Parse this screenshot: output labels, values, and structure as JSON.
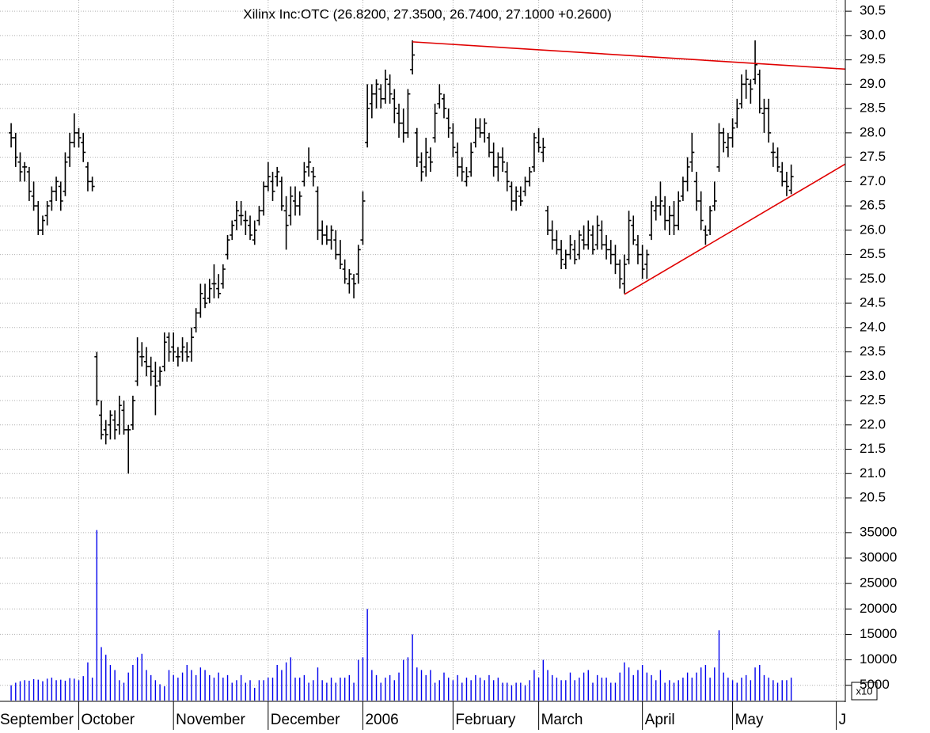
{
  "chart_data": [
    {
      "type": "ohlc",
      "title": "Xilinx Inc:OTC (26.8200, 27.3500, 26.7400, 27.1000 +0.2600)",
      "categories": [
        "September",
        null,
        null,
        null,
        null,
        null,
        null,
        null,
        null,
        null,
        null,
        null,
        null,
        null,
        null,
        null,
        null,
        null,
        "October",
        null,
        null,
        null,
        null,
        null,
        null,
        null,
        null,
        null,
        null,
        null,
        null,
        null,
        null,
        null,
        null,
        null,
        null,
        null,
        null,
        "November",
        null,
        null,
        null,
        null,
        null,
        null,
        null,
        null,
        null,
        null,
        null,
        null,
        null,
        null,
        null,
        null,
        null,
        null,
        null,
        null,
        "December",
        null,
        null,
        null,
        null,
        null,
        null,
        null,
        null,
        null,
        null,
        null,
        null,
        null,
        null,
        null,
        null,
        null,
        null,
        null,
        null,
        "2006",
        null,
        null,
        null,
        null,
        null,
        null,
        null,
        null,
        null,
        null,
        null,
        null,
        null,
        null,
        null,
        null,
        null,
        null,
        null,
        "February",
        null,
        null,
        null,
        null,
        null,
        null,
        null,
        null,
        null,
        null,
        null,
        null,
        null,
        null,
        null,
        null,
        null,
        null,
        "March",
        null,
        null,
        null,
        null,
        null,
        null,
        null,
        null,
        null,
        null,
        null,
        null,
        null,
        null,
        null,
        null,
        null,
        null,
        null,
        null,
        null,
        null,
        "April",
        null,
        null,
        null,
        null,
        null,
        null,
        null,
        null,
        null,
        null,
        null,
        null,
        null,
        null,
        null,
        null,
        null,
        null,
        null,
        "May",
        null,
        null,
        null,
        null,
        null,
        null,
        null,
        null,
        null,
        null,
        null,
        null,
        null,
        null,
        null,
        null,
        null,
        null,
        null,
        null,
        null,
        null,
        "June",
        null,
        null
      ],
      "open": [
        null,
        null,
        null,
        28.0,
        27.9,
        27.4,
        27.3,
        27.2,
        26.7,
        26.5,
        26.0,
        26.3,
        26.6,
        26.8,
        26.9,
        26.8,
        27.5,
        27.8,
        28.0,
        27.8,
        27.3,
        27.0,
        23.4,
        22.2,
        21.9,
        22.0,
        22.1,
        22.0,
        22.3,
        21.9,
        22.0,
        22.9,
        23.4,
        23.3,
        23.2,
        23.0,
        22.9,
        23.2,
        23.8,
        23.6,
        23.4,
        23.5,
        23.5,
        23.5,
        24.0,
        24.3,
        24.6,
        24.6,
        24.9,
        24.8,
        24.9,
        25.5,
        25.9,
        26.2,
        26.3,
        26.2,
        26.1,
        25.8,
        26.2,
        26.4,
        26.9,
        27.0,
        27.1,
        27.0,
        26.4,
        26.3,
        26.6,
        26.5,
        27.0,
        27.3,
        27.2,
        26.8,
        26.0,
        25.9,
        25.8,
        25.8,
        25.5,
        25.2,
        24.9,
        25.0,
        25.1,
        25.8,
        27.8,
        28.6,
        28.8,
        28.9,
        28.7,
        29.0,
        28.7,
        28.4,
        28.2,
        28.0,
        29.3,
        28.0,
        27.4,
        27.3,
        27.5,
        27.9,
        28.6,
        28.7,
        28.3,
        28.0,
        27.6,
        27.3,
        27.0,
        27.2,
        27.8,
        28.1,
        28.0,
        27.9,
        27.6,
        27.3,
        27.5,
        27.2,
        26.9,
        26.6,
        26.7,
        26.8,
        27.0,
        27.3,
        27.8,
        27.6,
        26.4,
        26.0,
        25.8,
        25.6,
        25.3,
        25.5,
        25.6,
        25.5,
        25.8,
        25.7,
        25.9,
        25.7,
        26.0,
        25.7,
        25.6,
        25.5,
        25.3,
        24.9,
        25.4,
        26.1,
        25.7,
        25.5,
        25.3,
        25.9,
        26.4,
        26.5,
        26.5,
        26.2,
        26.3,
        26.1,
        26.7,
        27.0,
        27.4,
        27.0,
        26.6,
        26.0,
        26.0,
        26.5,
        27.3,
        28.0,
        27.7,
        27.9,
        28.2,
        28.6,
        29.0,
        29.0,
        29.1,
        29.2,
        28.4,
        28.5,
        27.6,
        27.5,
        27.2,
        27.0,
        26.82,
        null,
        null,
        null,
        null,
        null,
        null,
        null,
        null,
        null,
        null,
        null,
        null
      ],
      "high": [
        null,
        null,
        null,
        28.2,
        28.0,
        27.6,
        27.4,
        27.3,
        27.0,
        26.6,
        26.3,
        26.6,
        26.9,
        27.1,
        27.0,
        27.6,
        28.0,
        28.4,
        28.1,
        28.0,
        27.4,
        27.1,
        23.5,
        22.5,
        22.1,
        22.3,
        22.3,
        22.6,
        22.5,
        22.0,
        22.6,
        23.8,
        23.7,
        23.6,
        23.4,
        23.3,
        23.2,
        23.9,
        23.9,
        23.9,
        23.6,
        23.8,
        23.7,
        24.0,
        24.4,
        24.9,
        24.9,
        25.0,
        25.3,
        25.1,
        25.3,
        25.9,
        26.2,
        26.6,
        26.6,
        26.4,
        26.3,
        26.2,
        26.5,
        27.0,
        27.4,
        27.2,
        27.3,
        27.1,
        26.7,
        26.9,
        26.9,
        26.8,
        27.4,
        27.7,
        27.3,
        26.9,
        26.2,
        26.1,
        26.1,
        26.0,
        25.8,
        25.4,
        25.2,
        25.1,
        25.7,
        26.8,
        29.0,
        29.0,
        29.1,
        29.0,
        29.3,
        29.2,
        28.9,
        28.6,
        28.5,
        28.9,
        29.9,
        28.1,
        27.6,
        27.9,
        27.7,
        28.6,
        29.0,
        28.8,
        28.5,
        28.2,
        27.8,
        27.5,
        27.3,
        27.8,
        28.3,
        28.3,
        28.3,
        28.0,
        27.8,
        27.6,
        27.7,
        27.4,
        27.0,
        26.9,
        26.9,
        27.1,
        27.3,
        28.0,
        28.1,
        27.9,
        26.5,
        26.2,
        26.0,
        25.8,
        25.6,
        25.9,
        25.8,
        26.0,
        26.1,
        26.2,
        26.1,
        26.3,
        26.2,
        25.9,
        25.8,
        25.7,
        25.4,
        25.5,
        26.4,
        26.3,
        25.9,
        25.7,
        25.6,
        26.6,
        26.7,
        27.0,
        26.7,
        26.5,
        26.6,
        26.8,
        27.1,
        27.5,
        28.0,
        27.2,
        26.8,
        26.1,
        26.5,
        27.0,
        28.2,
        28.1,
        28.0,
        28.3,
        28.7,
        29.2,
        29.3,
        29.1,
        29.9,
        29.3,
        28.7,
        28.7,
        27.8,
        27.7,
        27.4,
        27.2,
        27.35,
        null,
        null,
        null,
        null,
        null,
        null,
        null,
        null,
        null,
        null,
        null,
        null
      ],
      "low": [
        null,
        null,
        null,
        27.7,
        27.3,
        27.0,
        27.0,
        26.6,
        26.4,
        25.9,
        25.9,
        26.1,
        26.4,
        26.6,
        26.4,
        26.7,
        27.3,
        27.7,
        27.7,
        27.4,
        26.8,
        26.8,
        22.4,
        21.7,
        21.6,
        21.7,
        21.7,
        21.8,
        21.8,
        21.0,
        21.9,
        22.8,
        23.2,
        23.0,
        22.8,
        22.2,
        22.8,
        23.1,
        23.3,
        23.3,
        23.2,
        23.3,
        23.3,
        23.3,
        23.9,
        24.2,
        24.4,
        24.5,
        24.6,
        24.6,
        24.8,
        25.4,
        25.8,
        26.0,
        26.1,
        25.9,
        25.8,
        25.7,
        26.1,
        26.3,
        26.8,
        26.6,
        26.9,
        26.4,
        25.6,
        26.1,
        26.3,
        26.3,
        26.9,
        27.1,
        26.9,
        25.8,
        25.7,
        25.7,
        25.6,
        25.4,
        25.2,
        24.9,
        24.7,
        24.6,
        24.9,
        25.7,
        27.7,
        28.3,
        28.5,
        28.5,
        28.6,
        28.6,
        28.2,
        27.9,
        27.8,
        27.9,
        29.2,
        27.3,
        27.0,
        27.1,
        27.2,
        27.8,
        28.5,
        28.3,
        27.9,
        27.5,
        27.1,
        27.0,
        26.9,
        27.1,
        27.7,
        27.9,
        27.8,
        27.5,
        27.1,
        27.0,
        27.2,
        26.8,
        26.4,
        26.4,
        26.5,
        26.7,
        26.9,
        27.2,
        27.6,
        27.4,
        25.9,
        25.6,
        25.5,
        25.2,
        25.2,
        25.4,
        25.3,
        25.4,
        25.6,
        25.6,
        25.5,
        25.6,
        25.6,
        25.4,
        25.3,
        25.1,
        24.8,
        24.7,
        25.3,
        25.7,
        25.3,
        25.0,
        25.0,
        25.8,
        26.2,
        26.3,
        26.0,
        25.9,
        25.9,
        26.0,
        26.6,
        26.8,
        27.2,
        26.4,
        26.0,
        25.7,
        25.9,
        26.4,
        27.2,
        27.6,
        27.5,
        27.7,
        28.1,
        28.5,
        28.7,
        28.6,
        29.0,
        28.4,
        28.0,
        27.8,
        27.3,
        27.2,
        26.9,
        26.7,
        26.74,
        null,
        null,
        null,
        null,
        null,
        null,
        null,
        null,
        null,
        null,
        null,
        null
      ],
      "close": [
        null,
        null,
        null,
        27.9,
        27.5,
        27.2,
        27.3,
        26.8,
        26.5,
        26.0,
        26.2,
        26.5,
        26.8,
        27.0,
        26.6,
        27.4,
        27.8,
        28.0,
        27.9,
        27.6,
        27.0,
        26.9,
        22.5,
        21.8,
        21.8,
        22.2,
        21.9,
        22.4,
        21.9,
        21.9,
        22.5,
        23.5,
        23.4,
        23.2,
        23.1,
        22.8,
        23.1,
        23.7,
        23.5,
        23.5,
        23.4,
        23.6,
        23.4,
        23.8,
        24.3,
        24.7,
        24.5,
        24.8,
        24.9,
        24.7,
        25.2,
        25.8,
        26.1,
        26.4,
        26.3,
        26.2,
        25.9,
        26.0,
        26.4,
        26.9,
        27.1,
        26.8,
        27.2,
        26.5,
        26.1,
        26.7,
        26.5,
        26.7,
        27.2,
        27.4,
        27.1,
        26.0,
        25.9,
        25.8,
        26.0,
        25.5,
        25.3,
        25.0,
        25.1,
        24.9,
        25.6,
        26.6,
        28.5,
        28.8,
        29.0,
        28.7,
        29.1,
        28.8,
        28.5,
        28.2,
        28.0,
        28.8,
        29.6,
        27.5,
        27.2,
        27.6,
        27.4,
        28.4,
        28.8,
        28.5,
        28.1,
        27.7,
        27.3,
        27.2,
        27.1,
        27.6,
        28.1,
        28.0,
        28.2,
        27.6,
        27.3,
        27.5,
        27.4,
        27.0,
        26.6,
        26.8,
        26.6,
        27.0,
        27.2,
        27.9,
        27.7,
        27.7,
        26.0,
        25.8,
        25.6,
        25.4,
        25.5,
        25.7,
        25.4,
        25.9,
        25.7,
        26.0,
        25.6,
        26.1,
        25.7,
        25.6,
        25.5,
        25.3,
        25.0,
        25.3,
        26.2,
        25.8,
        25.5,
        25.2,
        25.5,
        26.5,
        26.5,
        26.6,
        26.2,
        26.3,
        26.1,
        26.6,
        27.0,
        27.3,
        27.6,
        26.6,
        26.2,
        25.9,
        26.4,
        26.6,
        28.0,
        27.8,
        27.9,
        28.1,
        28.5,
        29.0,
        29.1,
        28.9,
        29.4,
        28.5,
        28.5,
        28.0,
        27.6,
        27.3,
        27.0,
        26.9,
        27.1,
        null,
        null,
        null,
        null,
        null,
        null,
        null,
        null,
        null,
        null,
        null,
        null
      ],
      "color": "#000000",
      "ylim": [
        20.24,
        30.73
      ],
      "yticks": [
        20.5,
        {
          "value": 21,
          "label": "21.0"
        },
        21.5,
        {
          "value": 22,
          "label": "22.0"
        },
        22.5,
        {
          "value": 23,
          "label": "23.0"
        },
        23.5,
        {
          "value": 24,
          "label": "24.0"
        },
        24.5,
        {
          "value": 25,
          "label": "25.0"
        },
        25.5,
        {
          "value": 26,
          "label": "26.0"
        },
        26.5,
        {
          "value": 27,
          "label": "27.0"
        },
        27.5,
        {
          "value": 28,
          "label": "28.0"
        },
        28.5,
        {
          "value": 29,
          "label": "29.0"
        },
        29.5,
        {
          "value": 30,
          "label": "30.0"
        },
        30.5
      ],
      "grid": true,
      "trendlines": [
        {
          "color": "#e00000",
          "x": [
            92,
            188
          ],
          "y": [
            29.87,
            29.31
          ]
        },
        {
          "color": "#e00000",
          "x": [
            139,
            188
          ],
          "y": [
            24.68,
            27.36
          ]
        }
      ]
    },
    {
      "type": "bar",
      "scale_label": "x10",
      "color": "#0000ee",
      "values": [
        null,
        null,
        null,
        5000,
        5500,
        5800,
        6000,
        5900,
        6200,
        6100,
        5800,
        6300,
        6500,
        6000,
        6100,
        5900,
        6400,
        6300,
        6000,
        6800,
        9500,
        6500,
        35500,
        12500,
        11000,
        9000,
        8000,
        6000,
        5500,
        7500,
        9000,
        10500,
        11200,
        8000,
        7000,
        6000,
        5200,
        4800,
        8000,
        7000,
        6500,
        7500,
        9000,
        8000,
        7000,
        8500,
        8000,
        7000,
        6500,
        7500,
        6500,
        7000,
        5500,
        6000,
        7000,
        5500,
        6000,
        4500,
        6000,
        6000,
        6500,
        6500,
        9000,
        8000,
        9500,
        10500,
        6500,
        6500,
        7000,
        5500,
        6000,
        8500,
        6000,
        5500,
        6500,
        5500,
        6500,
        6500,
        7000,
        5500,
        10000,
        10500,
        20000,
        8000,
        7000,
        5500,
        6500,
        7000,
        6000,
        7500,
        10000,
        10500,
        15000,
        8500,
        8000,
        7000,
        8000,
        5500,
        6000,
        7500,
        6500,
        6000,
        7000,
        5500,
        6500,
        6000,
        7000,
        6500,
        6000,
        7000,
        6000,
        6500,
        5500,
        5500,
        5000,
        5500,
        5500,
        5000,
        6000,
        8000,
        6500,
        10000,
        8000,
        7000,
        6500,
        6000,
        6000,
        7500,
        6000,
        6500,
        7500,
        8000,
        5500,
        7000,
        6500,
        6500,
        5500,
        5500,
        7500,
        9500,
        8500,
        7000,
        8000,
        9000,
        7500,
        7000,
        6000,
        8000,
        5500,
        6000,
        5500,
        6000,
        6500,
        7500,
        6500,
        7500,
        8500,
        9000,
        6500,
        8500,
        15800,
        7500,
        6500,
        6000,
        5500,
        6500,
        7000,
        6000,
        8500,
        9000,
        7000,
        6500,
        6000,
        5500,
        6000,
        6000,
        6500,
        null,
        null,
        null,
        null,
        null,
        null,
        null,
        null,
        null,
        null,
        null,
        null
      ],
      "ylim": [
        2000,
        37000
      ],
      "yticks": [
        5000,
        10000,
        15000,
        20000,
        25000,
        30000,
        35000
      ],
      "grid": true
    }
  ]
}
